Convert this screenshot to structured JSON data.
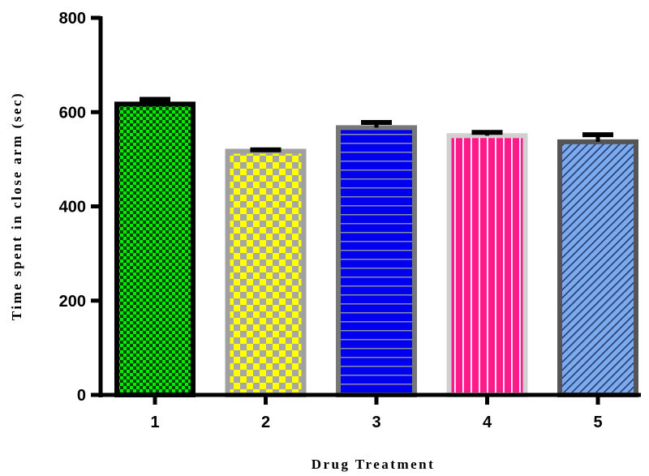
{
  "chart_data": {
    "type": "bar",
    "title": "",
    "xlabel": "Drug Treatment",
    "ylabel": "Time spent in close arm (sec)",
    "ylim": [
      0,
      800
    ],
    "yticks": [
      "0",
      "200",
      "400",
      "600",
      "800"
    ],
    "grid": false,
    "categories": [
      "1",
      "2",
      "3",
      "4",
      "5"
    ],
    "values": [
      617,
      517,
      567,
      550,
      537
    ],
    "error": [
      10,
      3,
      11,
      7,
      15
    ],
    "bars": [
      {
        "pattern": "checker-small",
        "fill_color": "#00ee00",
        "pattern_color": "#004400",
        "border_color": "#000000"
      },
      {
        "pattern": "checker-large",
        "fill_color": "#ffff00",
        "pattern_color": "#a6a6a6",
        "border_color": "#a0a0a0"
      },
      {
        "pattern": "horizontal-stripes",
        "fill_color": "#0000ee",
        "pattern_color": "#8888aa",
        "border_color": "#777777"
      },
      {
        "pattern": "vertical-stripes",
        "fill_color": "#ff1a8c",
        "pattern_color": "#ffffff",
        "border_color": "#d0d0d0"
      },
      {
        "pattern": "diagonal-stripes",
        "fill_color": "#7aaaf0",
        "pattern_color": "#2a3a66",
        "border_color": "#555555"
      }
    ]
  }
}
